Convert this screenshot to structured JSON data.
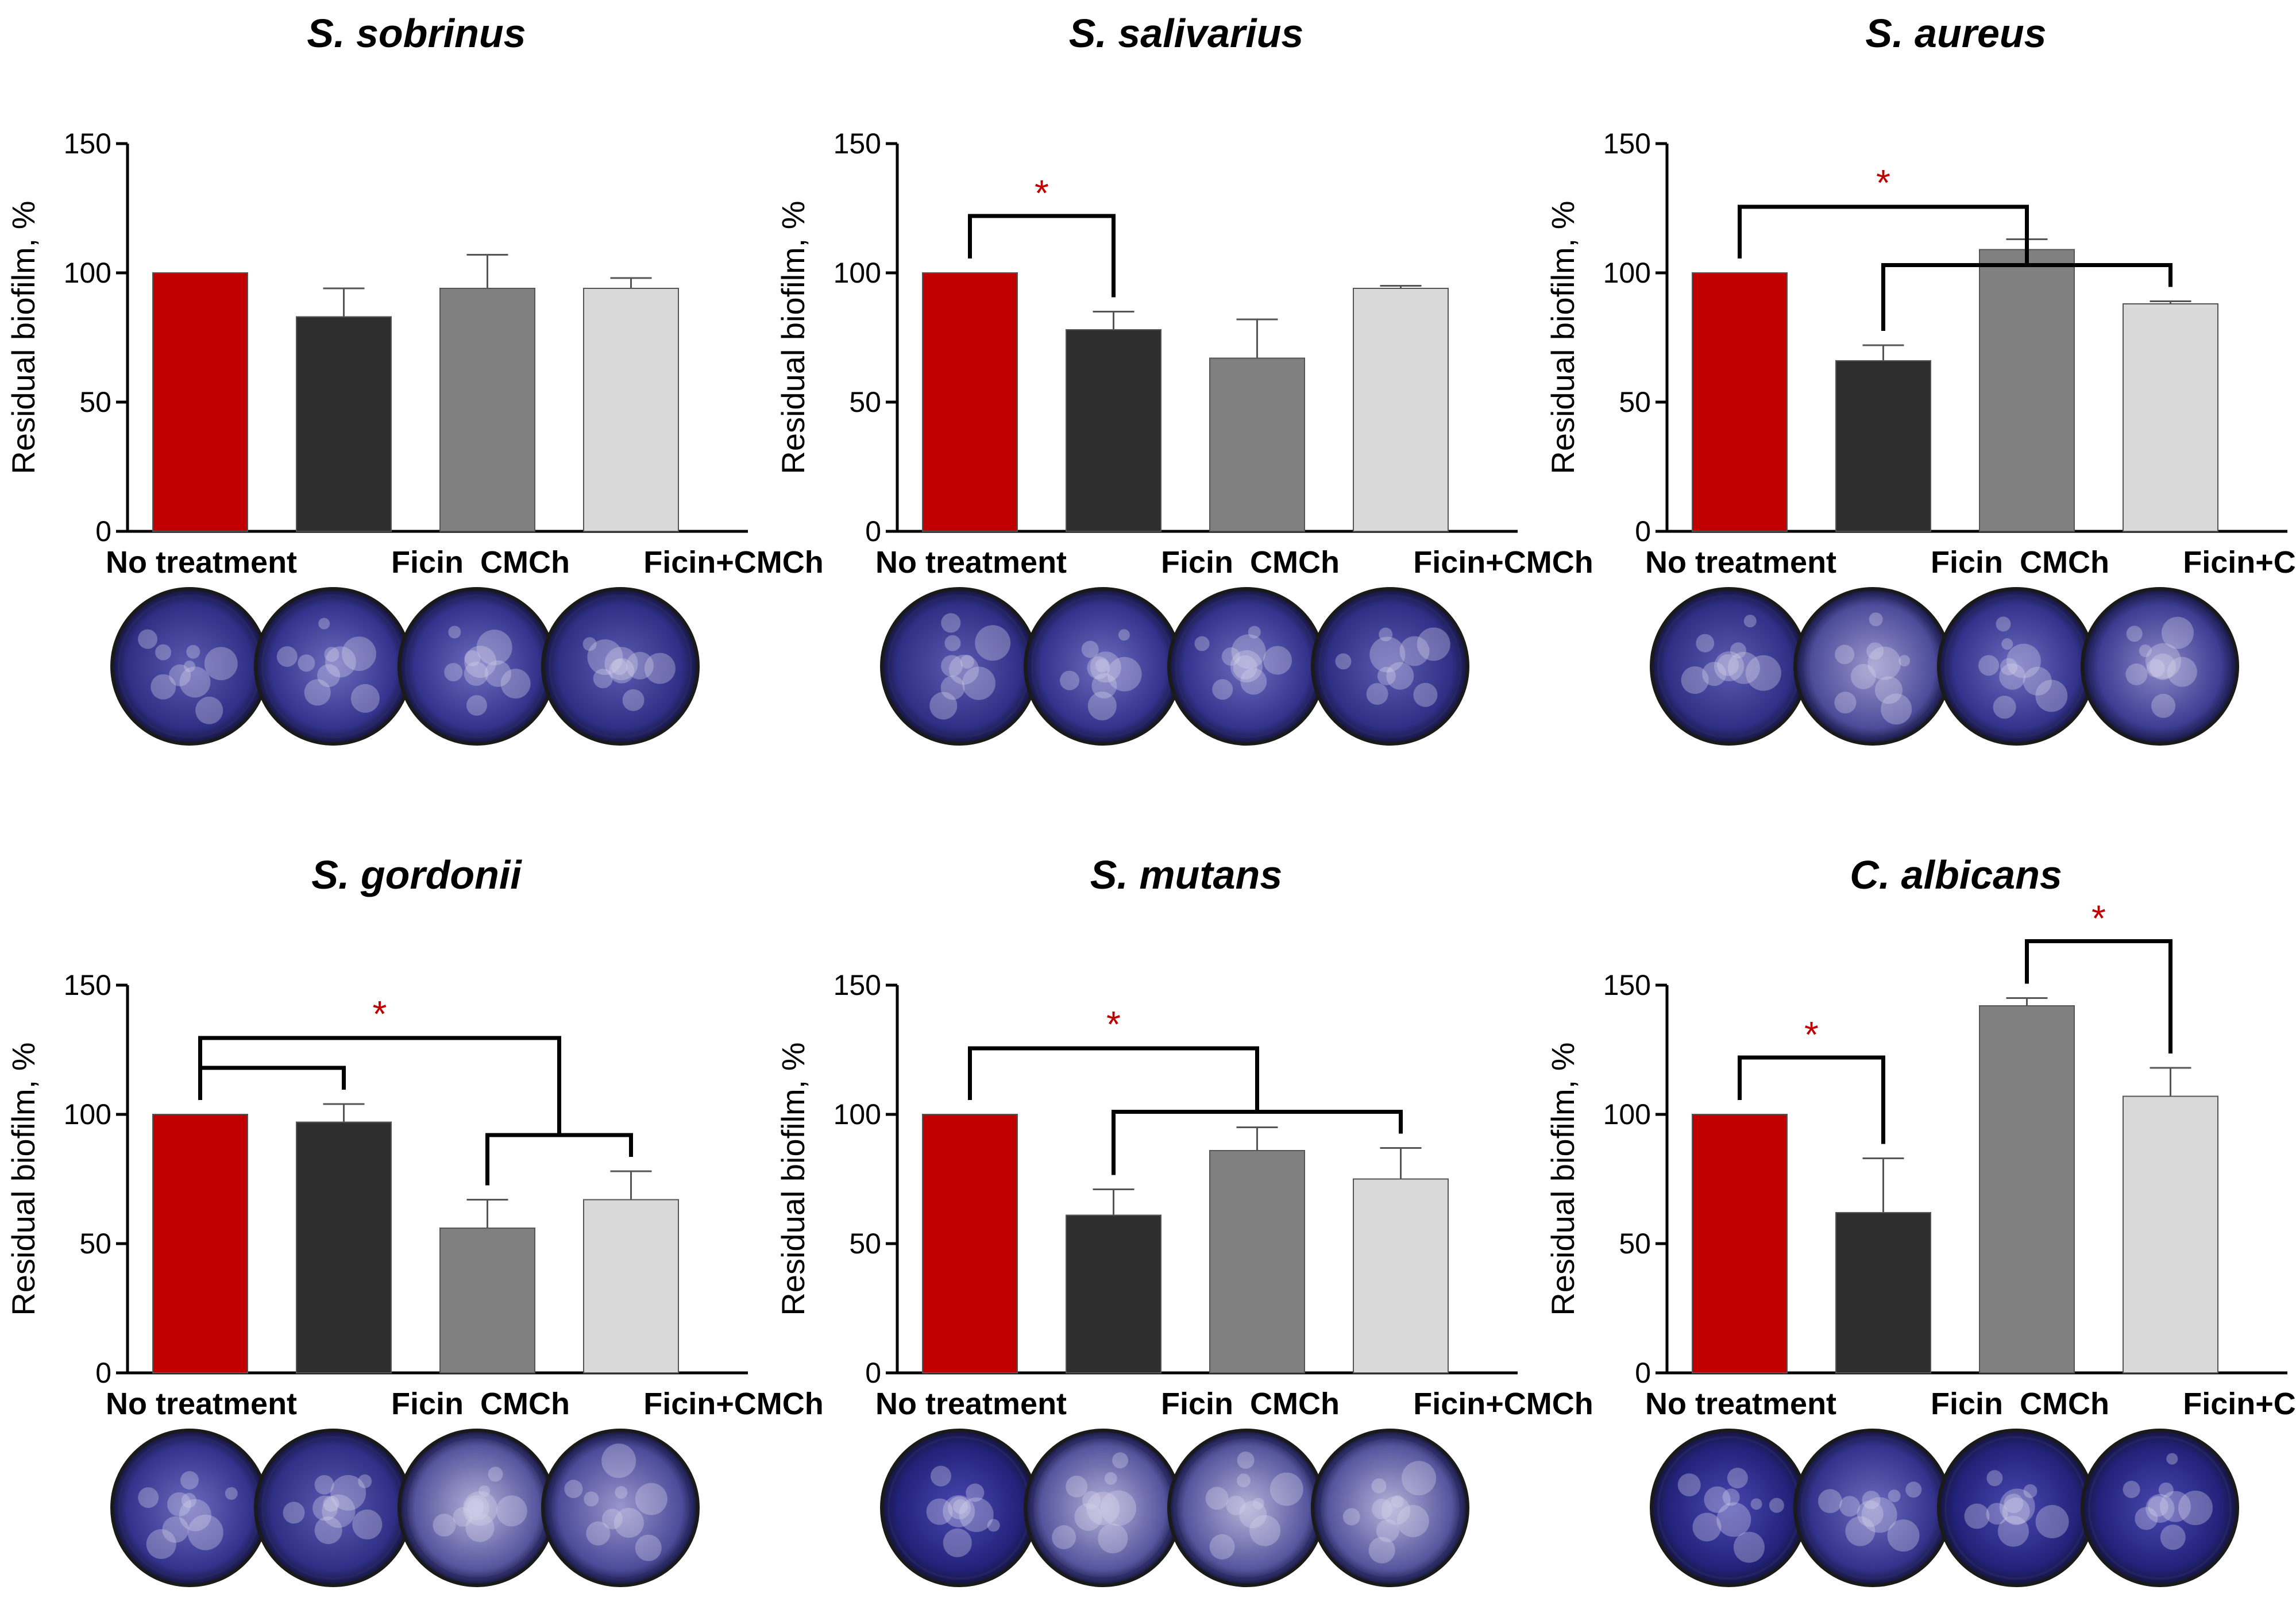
{
  "figure": {
    "ylabel": "Residual biofilm, %",
    "categories": [
      "No treatment",
      "Ficin",
      "CMCh",
      "Ficin+CMCh"
    ],
    "colors": {
      "no_treatment": "#C00000",
      "ficin": "#2E2E2E",
      "cmch": "#808080",
      "ficin_cmch": "#D9D9D9",
      "significance": "#C00000",
      "well_stain": "#4A4A9E"
    }
  },
  "chart_data": [
    {
      "type": "bar",
      "title": "S. sobrinus",
      "categories": [
        "No treatment",
        "Ficin",
        "CMCh",
        "Ficin+CMCh"
      ],
      "values": [
        100,
        83,
        94,
        94
      ],
      "errors": [
        0,
        11,
        13,
        4
      ],
      "ylabel": "Residual biofilm, %",
      "ylim": [
        0,
        150
      ],
      "yticks": [
        0,
        50,
        100,
        150
      ],
      "significance": []
    },
    {
      "type": "bar",
      "title": "S. salivarius",
      "categories": [
        "No treatment",
        "Ficin",
        "CMCh",
        "Ficin+CMCh"
      ],
      "values": [
        100,
        78,
        67,
        94
      ],
      "errors": [
        0,
        7,
        15,
        1
      ],
      "ylabel": "Residual biofilm, %",
      "ylim": [
        0,
        150
      ],
      "yticks": [
        0,
        50,
        100,
        150
      ],
      "significance": [
        {
          "type": "simple",
          "from": 0,
          "to": 1,
          "label": "*"
        }
      ]
    },
    {
      "type": "bar",
      "title": "S. aureus",
      "categories": [
        "No treatment",
        "Ficin",
        "CMCh",
        "Ficin+CMCh"
      ],
      "values": [
        100,
        66,
        109,
        88
      ],
      "errors": [
        0,
        6,
        4,
        1
      ],
      "ylabel": "Residual biofilm, %",
      "ylim": [
        0,
        150
      ],
      "yticks": [
        0,
        50,
        100,
        150
      ],
      "significance": [
        {
          "type": "nested",
          "from": 0,
          "to": [
            1,
            3
          ],
          "label": "*"
        }
      ]
    },
    {
      "type": "bar",
      "title": "S. gordonii",
      "categories": [
        "No treatment",
        "Ficin",
        "CMCh",
        "Ficin+CMCh"
      ],
      "values": [
        100,
        97,
        56,
        67
      ],
      "errors": [
        0,
        7,
        11,
        11
      ],
      "ylabel": "Residual biofilm, %",
      "ylim": [
        0,
        150
      ],
      "yticks": [
        0,
        50,
        100,
        150
      ],
      "significance": [
        {
          "type": "nested",
          "from": [
            0,
            1
          ],
          "to": [
            2,
            3
          ],
          "label": "*"
        }
      ]
    },
    {
      "type": "bar",
      "title": "S. mutans",
      "categories": [
        "No treatment",
        "Ficin",
        "CMCh",
        "Ficin+CMCh"
      ],
      "values": [
        100,
        61,
        86,
        75
      ],
      "errors": [
        0,
        10,
        9,
        12
      ],
      "ylabel": "Residual biofilm, %",
      "ylim": [
        0,
        150
      ],
      "yticks": [
        0,
        50,
        100,
        150
      ],
      "significance": [
        {
          "type": "nested",
          "from": 0,
          "to": [
            1,
            3
          ],
          "label": "*"
        }
      ]
    },
    {
      "type": "bar",
      "title": "C. albicans",
      "categories": [
        "No treatment",
        "Ficin",
        "CMCh",
        "Ficin+CMCh"
      ],
      "values": [
        100,
        62,
        142,
        107
      ],
      "errors": [
        0,
        21,
        3,
        11
      ],
      "ylabel": "Residual biofilm, %",
      "ylim": [
        0,
        150
      ],
      "yticks": [
        0,
        50,
        100,
        150
      ],
      "significance": [
        {
          "type": "simple",
          "from": 0,
          "to": 1,
          "label": "*"
        },
        {
          "type": "simple",
          "from": 2,
          "to": 3,
          "label": "*"
        }
      ]
    }
  ]
}
